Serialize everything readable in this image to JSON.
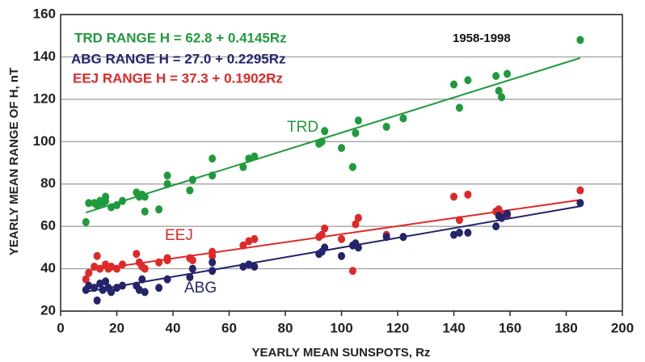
{
  "chart_data": {
    "type": "scatter",
    "x_label": "YEARLY MEAN SUNSPOTS, Rz",
    "y_label": "YEARLY MEAN RANGE OF H, nT",
    "xlim": [
      0,
      200
    ],
    "xticks": [
      0,
      20,
      40,
      60,
      80,
      100,
      120,
      140,
      160,
      180,
      200
    ],
    "ylim": [
      20,
      160
    ],
    "yticks": [
      20,
      40,
      60,
      80,
      100,
      120,
      140,
      160
    ],
    "grid": true,
    "annotations": [
      {
        "text": "TRD RANGE H = 62.8 + 0.4145Rz",
        "color": "#1f9a3c"
      },
      {
        "text": "ABG RANGE H = 27.0 + 0.2295Rz",
        "color": "#24246b"
      },
      {
        "text": "EEJ RANGE H = 37.3 + 0.1902Rz",
        "color": "#e02828"
      },
      {
        "text": "1958-1998",
        "color": "#111111"
      }
    ],
    "series": [
      {
        "name": "TRD",
        "color": "#1f9a3c",
        "x": [
          9,
          10,
          12,
          13,
          14,
          15,
          16,
          16,
          18,
          20,
          22,
          27,
          28,
          29,
          30,
          30,
          35,
          38,
          38,
          46,
          47,
          54,
          54,
          65,
          67,
          69,
          92,
          93,
          94,
          100,
          104,
          105,
          106,
          116,
          122,
          140,
          142,
          145,
          155,
          156,
          157,
          159,
          185
        ],
        "values": [
          62,
          71,
          71,
          70,
          72,
          71,
          74,
          72,
          69,
          70,
          72,
          76,
          74,
          75,
          67,
          74,
          68,
          84,
          80,
          77,
          82,
          92,
          84,
          88,
          92,
          93,
          99,
          100,
          105,
          97,
          88,
          104,
          110,
          107,
          111,
          127,
          116,
          129,
          131,
          124,
          121,
          132,
          148
        ],
        "fit": {
          "x": [
            9,
            185
          ],
          "values": [
            66.5,
            139.5
          ]
        }
      },
      {
        "name": "EEJ",
        "color": "#e02828",
        "x": [
          9,
          10,
          12,
          13,
          14,
          16,
          17,
          18,
          20,
          22,
          27,
          28,
          29,
          30,
          35,
          38,
          38,
          46,
          47,
          54,
          54,
          65,
          67,
          69,
          92,
          93,
          94,
          100,
          104,
          105,
          106,
          116,
          122,
          140,
          142,
          145,
          155,
          156,
          157,
          159,
          185
        ],
        "values": [
          35,
          38,
          41,
          46,
          40,
          42,
          40,
          41,
          40,
          42,
          47,
          43,
          41,
          40,
          43,
          45,
          44,
          45,
          44,
          48,
          46,
          51,
          53,
          54,
          55,
          56,
          59,
          54,
          39,
          61,
          64,
          56,
          55,
          74,
          63,
          75,
          67,
          68,
          66,
          65,
          77
        ],
        "fit": {
          "x": [
            9,
            185
          ],
          "values": [
            39.0,
            72.5
          ]
        }
      },
      {
        "name": "ABG",
        "color": "#24246b",
        "x": [
          9,
          10,
          12,
          13,
          14,
          15,
          16,
          17,
          18,
          20,
          22,
          27,
          28,
          29,
          30,
          35,
          38,
          46,
          47,
          54,
          54,
          65,
          67,
          69,
          92,
          93,
          94,
          100,
          104,
          105,
          106,
          116,
          122,
          140,
          142,
          145,
          155,
          156,
          157,
          159,
          185
        ],
        "values": [
          30,
          32,
          31,
          25,
          33,
          30,
          34,
          31,
          29,
          31,
          32,
          32,
          30,
          35,
          29,
          31,
          35,
          36,
          40,
          43,
          39,
          41,
          42,
          41,
          47,
          48,
          50,
          46,
          51,
          52,
          50,
          55,
          55,
          56,
          57,
          57,
          60,
          65,
          64,
          66,
          71
        ],
        "fit": {
          "x": [
            9,
            185
          ],
          "values": [
            29.1,
            69.5
          ]
        }
      }
    ]
  }
}
